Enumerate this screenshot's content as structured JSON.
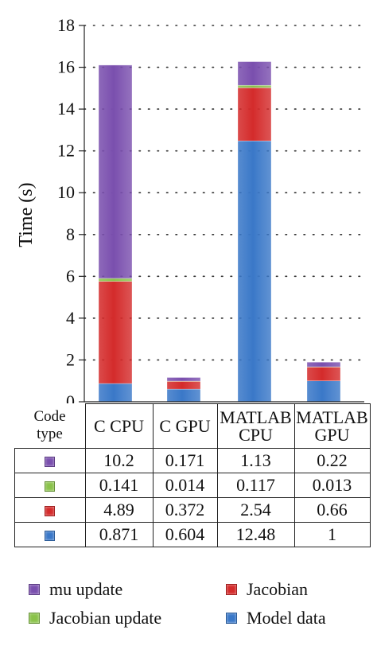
{
  "chart_data": {
    "type": "bar",
    "stacked": true,
    "categories": [
      "C CPU",
      "C GPU",
      "MATLAB CPU",
      "MATLAB GPU"
    ],
    "category_labels": [
      [
        "C CPU"
      ],
      [
        "C GPU"
      ],
      [
        "MATLAB",
        "CPU"
      ],
      [
        "MATLAB",
        "GPU"
      ]
    ],
    "series": [
      {
        "name": "Model data",
        "color": "#3a78c8",
        "values": [
          "0.871",
          "0.604",
          "12.48",
          "1"
        ]
      },
      {
        "name": "Jacobian",
        "color": "#d42b2b",
        "values": [
          "4.89",
          "0.372",
          "2.54",
          "0.66"
        ]
      },
      {
        "name": "Jacobian update",
        "color": "#8ac24a",
        "values": [
          "0.141",
          "0.014",
          "0.117",
          "0.013"
        ]
      },
      {
        "name": "mu update",
        "color": "#7a4fae",
        "values": [
          "10.2",
          "0.171",
          "1.13",
          "0.22"
        ]
      }
    ],
    "table_row_order": [
      "mu update",
      "Jacobian update",
      "Jacobian",
      "Model data"
    ],
    "ylabel": "Time (s)",
    "ylim": [
      0,
      18
    ],
    "yticks": [
      "0",
      "2",
      "4",
      "6",
      "8",
      "10",
      "12",
      "14",
      "16",
      "18"
    ],
    "grid": "horizontal dotted",
    "table_header": [
      "Code",
      "type"
    ],
    "legend_position": "bottom"
  }
}
